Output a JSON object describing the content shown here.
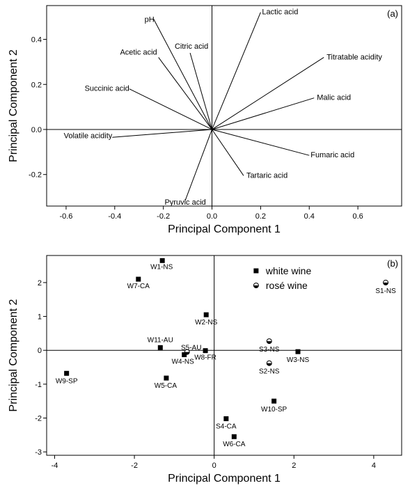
{
  "chart_data": [
    {
      "type": "biplot",
      "panel_label": "(a)",
      "xlabel": "Principal Component 1",
      "ylabel": "Principal Component 2",
      "xlim": [
        -0.68,
        0.78
      ],
      "ylim": [
        -0.34,
        0.55
      ],
      "xticks": [
        -0.6,
        -0.4,
        -0.2,
        0.0,
        0.2,
        0.4,
        0.6
      ],
      "xtick_labels": [
        "-0.6",
        "-0.4",
        "-0.2",
        "0.0",
        "0.2",
        "0.4",
        "0.6"
      ],
      "yticks": [
        -0.2,
        0.0,
        0.2,
        0.4
      ],
      "ytick_labels": [
        "-0.2",
        "0.0",
        "0.2",
        "0.4"
      ],
      "vectors": [
        {
          "label": "Lactic acid",
          "x": 0.2,
          "y": 0.52
        },
        {
          "label": "pH",
          "x": -0.24,
          "y": 0.49
        },
        {
          "label": "Citric acid",
          "x": -0.09,
          "y": 0.34
        },
        {
          "label": "Titratable acidity",
          "x": 0.46,
          "y": 0.32
        },
        {
          "label": "Acetic acid",
          "x": -0.22,
          "y": 0.32
        },
        {
          "label": "Succinic acid",
          "x": -0.34,
          "y": 0.18
        },
        {
          "label": "Malic acid",
          "x": 0.42,
          "y": 0.14
        },
        {
          "label": "Volatile acidity",
          "x": -0.41,
          "y": -0.035
        },
        {
          "label": "Fumaric acid",
          "x": 0.4,
          "y": -0.115
        },
        {
          "label": "Tartaric acid",
          "x": 0.13,
          "y": -0.205
        },
        {
          "label": "Pyruvic acid",
          "x": -0.11,
          "y": -0.315
        }
      ]
    },
    {
      "type": "scatter",
      "panel_label": "(b)",
      "xlabel": "Principal Component 1",
      "ylabel": "Principal Component 2",
      "xlim": [
        -4.2,
        4.7
      ],
      "ylim": [
        -3.1,
        2.8
      ],
      "xticks": [
        -4,
        -2,
        0,
        2,
        4
      ],
      "xtick_labels": [
        "-4",
        "-2",
        "0",
        "2",
        "4"
      ],
      "yticks": [
        -3,
        -2,
        -1,
        0,
        1,
        2
      ],
      "ytick_labels": [
        "-3",
        "-2",
        "-1",
        "0",
        "1",
        "2"
      ],
      "legend": [
        {
          "label": "white wine",
          "marker": "square"
        },
        {
          "label": "rosé wine",
          "marker": "circle-half"
        }
      ],
      "series": [
        {
          "name": "white wine",
          "points": [
            {
              "label": "W1-NS",
              "x": -1.3,
              "y": 2.65
            },
            {
              "label": "W7-CA",
              "x": -1.9,
              "y": 2.1
            },
            {
              "label": "W2-NS",
              "x": -0.2,
              "y": 1.05
            },
            {
              "label": "W11-AU",
              "x": -1.35,
              "y": 0.08
            },
            {
              "label": "W4-NS",
              "x": -0.75,
              "y": -0.13
            },
            {
              "label": "W8-FR",
              "x": -0.22,
              "y": -0.01
            },
            {
              "label": "W9-SP",
              "x": -3.7,
              "y": -0.68
            },
            {
              "label": "W5-CA",
              "x": -1.2,
              "y": -0.82
            },
            {
              "label": "W3-NS",
              "x": 2.1,
              "y": -0.04
            },
            {
              "label": "W10-SP",
              "x": 1.5,
              "y": -1.5
            },
            {
              "label": "S4-CA",
              "x": 0.3,
              "y": -2.02
            },
            {
              "label": "W6-CA",
              "x": 0.5,
              "y": -2.55
            }
          ]
        },
        {
          "name": "rosé wine",
          "points": [
            {
              "label": "S1-NS",
              "x": 4.3,
              "y": 2.0
            },
            {
              "label": "S3-NS",
              "x": 1.38,
              "y": 0.27
            },
            {
              "label": "S5-AU",
              "x": -0.68,
              "y": -0.05
            },
            {
              "label": "S2-NS",
              "x": 1.38,
              "y": -0.38
            }
          ]
        }
      ]
    }
  ]
}
